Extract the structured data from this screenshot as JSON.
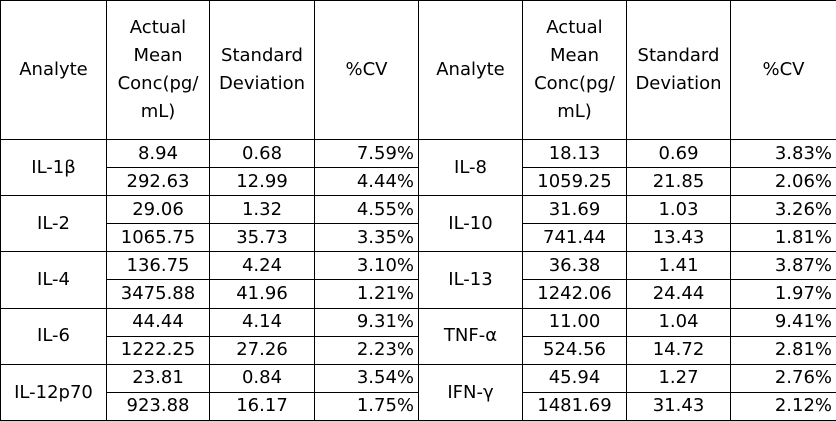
{
  "headers": [
    "Analyte",
    "Actual Mean Conc(pg/ mL)",
    "Standard Deviation",
    "%CV",
    "Analyte",
    "Actual Mean Conc(pg/ mL)",
    "Standard Deviation",
    "%CV"
  ],
  "header_lines": {
    "analyte": [
      "Analyte"
    ],
    "conc": [
      "Actual",
      "Mean",
      "Conc(pg/",
      "mL)"
    ],
    "sd": [
      "Standard",
      "Deviation"
    ],
    "cv": [
      "%CV"
    ]
  },
  "groups": [
    {
      "left": {
        "analyte": "IL-1β",
        "rows": [
          {
            "conc": "8.94",
            "sd": "0.68",
            "cv": "7.59%"
          },
          {
            "conc": "292.63",
            "sd": "12.99",
            "cv": "4.44%"
          }
        ]
      },
      "right": {
        "analyte": "IL-8",
        "rows": [
          {
            "conc": "18.13",
            "sd": "0.69",
            "cv": "3.83%"
          },
          {
            "conc": "1059.25",
            "sd": "21.85",
            "cv": "2.06%"
          }
        ]
      }
    },
    {
      "left": {
        "analyte": "IL-2",
        "rows": [
          {
            "conc": "29.06",
            "sd": "1.32",
            "cv": "4.55%"
          },
          {
            "conc": "1065.75",
            "sd": "35.73",
            "cv": "3.35%"
          }
        ]
      },
      "right": {
        "analyte": "IL-10",
        "rows": [
          {
            "conc": "31.69",
            "sd": "1.03",
            "cv": "3.26%"
          },
          {
            "conc": "741.44",
            "sd": "13.43",
            "cv": "1.81%"
          }
        ]
      }
    },
    {
      "left": {
        "analyte": "IL-4",
        "rows": [
          {
            "conc": "136.75",
            "sd": "4.24",
            "cv": "3.10%"
          },
          {
            "conc": "3475.88",
            "sd": "41.96",
            "cv": "1.21%"
          }
        ]
      },
      "right": {
        "analyte": "IL-13",
        "rows": [
          {
            "conc": "36.38",
            "sd": "1.41",
            "cv": "3.87%"
          },
          {
            "conc": "1242.06",
            "sd": "24.44",
            "cv": "1.97%"
          }
        ]
      }
    },
    {
      "left": {
        "analyte": "IL-6",
        "rows": [
          {
            "conc": "44.44",
            "sd": "4.14",
            "cv": "9.31%"
          },
          {
            "conc": "1222.25",
            "sd": "27.26",
            "cv": "2.23%"
          }
        ]
      },
      "right": {
        "analyte": "TNF-α",
        "rows": [
          {
            "conc": "11.00",
            "sd": "1.04",
            "cv": "9.41%"
          },
          {
            "conc": "524.56",
            "sd": "14.72",
            "cv": "2.81%"
          }
        ]
      }
    },
    {
      "left": {
        "analyte": "IL-12p70",
        "rows": [
          {
            "conc": "23.81",
            "sd": "0.84",
            "cv": "3.54%"
          },
          {
            "conc": "923.88",
            "sd": "16.17",
            "cv": "1.75%"
          }
        ]
      },
      "right": {
        "analyte": "IFN-γ",
        "rows": [
          {
            "conc": "45.94",
            "sd": "1.27",
            "cv": "2.76%"
          },
          {
            "conc": "1481.69",
            "sd": "31.43",
            "cv": "2.12%"
          }
        ]
      }
    }
  ]
}
